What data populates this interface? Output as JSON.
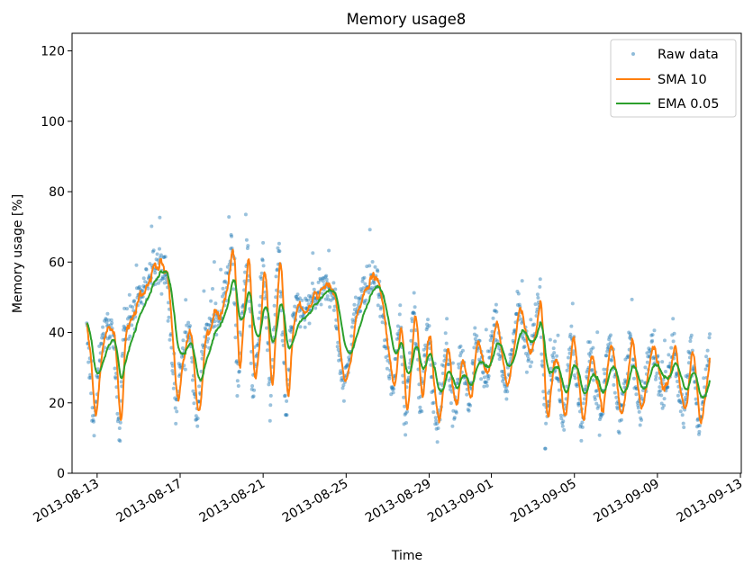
{
  "chart_data": {
    "type": "line",
    "title": "Memory usage8",
    "xlabel": "Time",
    "ylabel": "Memory usage [%]",
    "ylim": [
      0,
      125
    ],
    "xlim": [
      "2013-08-11T19:00",
      "2013-09-13T01:00"
    ],
    "x_ticks": [
      "2013-08-13",
      "2013-08-17",
      "2013-08-21",
      "2013-08-25",
      "2013-08-29",
      "2013-09-01",
      "2013-09-05",
      "2013-09-09",
      "2013-09-13"
    ],
    "y_ticks": [
      0,
      20,
      40,
      60,
      80,
      100,
      120
    ],
    "grid": false,
    "legend_position": "top-right",
    "series": [
      {
        "name": "Raw data",
        "style": "points",
        "color": "#1f77b4"
      },
      {
        "name": "SMA 10",
        "style": "line",
        "color": "#ff7f0e"
      },
      {
        "name": "EMA 0.05",
        "style": "line",
        "color": "#2ca02c"
      }
    ],
    "trend": {
      "x": [
        "2013-08-12T12:00",
        "2013-08-12T20:00",
        "2013-08-13T04:00",
        "2013-08-13T16:00",
        "2013-08-14T02:00",
        "2013-08-14T06:00",
        "2013-08-14T14:00",
        "2013-08-15T00:00",
        "2013-08-15T18:00",
        "2013-08-16T08:00",
        "2013-08-16T18:00",
        "2013-08-17T00:00",
        "2013-08-17T10:00",
        "2013-08-17T20:00",
        "2013-08-18T02:00",
        "2013-08-18T14:00",
        "2013-08-19T00:00",
        "2013-08-19T12:00",
        "2013-08-19T18:00",
        "2013-08-20T06:00",
        "2013-08-20T12:00",
        "2013-08-21T00:00",
        "2013-08-21T08:00",
        "2013-08-21T18:00",
        "2013-08-22T02:00",
        "2013-08-22T08:00",
        "2013-08-22T16:00",
        "2013-08-23T00:00",
        "2013-08-23T12:00",
        "2013-08-23T22:00",
        "2013-08-24T08:00",
        "2013-08-24T20:00",
        "2013-08-25T14:00",
        "2013-08-26T10:00",
        "2013-08-27T06:00",
        "2013-08-27T14:00",
        "2013-08-27T20:00",
        "2013-08-28T06:00",
        "2013-08-28T14:00",
        "2013-08-28T22:00",
        "2013-08-29T08:00",
        "2013-08-29T20:00",
        "2013-08-30T04:00",
        "2013-08-30T12:00",
        "2013-08-30T22:00",
        "2013-08-31T06:00",
        "2013-08-31T18:00",
        "2013-09-01T04:00",
        "2013-09-01T16:00",
        "2013-09-02T06:00",
        "2013-09-02T20:00",
        "2013-09-03T08:00",
        "2013-09-03T14:00",
        "2013-09-04T00:00",
        "2013-09-04T12:00",
        "2013-09-04T20:00",
        "2013-09-05T08:00",
        "2013-09-05T18:00",
        "2013-09-06T06:00",
        "2013-09-06T16:00",
        "2013-09-07T04:00",
        "2013-09-07T16:00",
        "2013-09-08T04:00",
        "2013-09-08T16:00",
        "2013-09-09T06:00",
        "2013-09-09T18:00",
        "2013-09-10T06:00",
        "2013-09-10T14:00",
        "2013-09-11T00:00",
        "2013-09-11T12:00"
      ],
      "y": [
        40,
        12,
        38,
        42,
        12,
        40,
        44,
        48,
        60,
        56,
        18,
        30,
        42,
        14,
        36,
        44,
        46,
        65,
        26,
        65,
        18,
        62,
        20,
        66,
        16,
        40,
        48,
        45,
        50,
        52,
        53,
        24,
        50,
        56,
        22,
        45,
        14,
        50,
        18,
        42,
        12,
        38,
        15,
        35,
        20,
        38,
        25,
        45,
        22,
        48,
        32,
        50,
        12,
        35,
        14,
        40,
        12,
        35,
        16,
        40,
        14,
        38,
        15,
        40,
        20,
        38,
        14,
        38,
        12,
        36
      ]
    }
  }
}
